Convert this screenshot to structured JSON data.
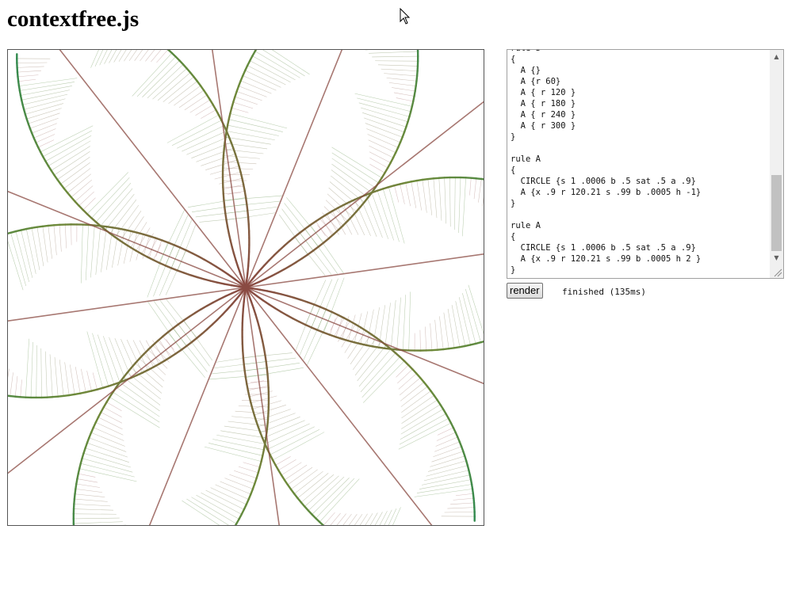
{
  "page": {
    "title": "contextfree.js"
  },
  "editor": {
    "code": "rule S\n{\n  A {}\n  A {r 60}\n  A { r 120 }\n  A { r 180 }\n  A { r 240 }\n  A { r 300 }\n}\n\nrule A\n{\n  CIRCLE {s 1 .0006 b .5 sat .5 a .9}\n  A {x .9 r 120.21 s .99 b .0005 h -1}\n}\n\nrule A\n{\n  CIRCLE {s 1 .0006 b .5 sat .5 a .9}\n  A {x .9 r 120.21 s .99 b .0005 h 2 }\n}",
    "scroll_up_icon": "triangle-up",
    "scroll_down_icon": "triangle-down"
  },
  "controls": {
    "render_label": "render",
    "status": "finished (135ms)"
  },
  "artwork": {
    "colors": {
      "stroke_start": "#8a4a42",
      "stroke_mid": "#6e8a3a",
      "stroke_end": "#2f8a4f",
      "wash": "#b98a8a",
      "wash_green": "#7aa86a"
    }
  },
  "cursor": {
    "icon": "mouse-pointer"
  }
}
